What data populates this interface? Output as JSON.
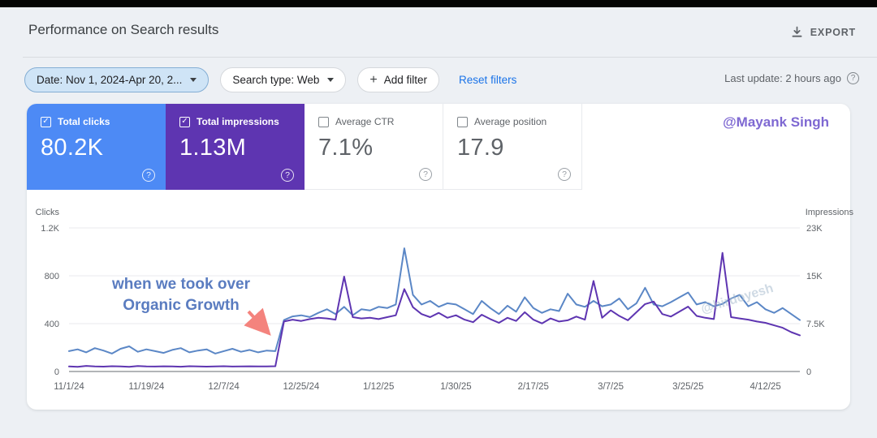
{
  "app": {
    "title": "Performance on Search results",
    "export_label": "EXPORT"
  },
  "filters": {
    "date_label": "Date: Nov 1, 2024-Apr 20, 2...",
    "search_type_label": "Search type: Web",
    "add_filter_label": "Add filter",
    "reset_label": "Reset filters",
    "last_update_label": "Last update: 2 hours ago"
  },
  "icons": {
    "plus": "+",
    "check": "✓",
    "help": "?"
  },
  "metrics": [
    {
      "label": "Total clicks",
      "value": "80.2K",
      "checked": true,
      "bg": "#4d8af5"
    },
    {
      "label": "Total impressions",
      "value": "1.13M",
      "checked": true,
      "bg": "#5e35b1"
    },
    {
      "label": "Average CTR",
      "value": "7.1%",
      "checked": false,
      "bg": ""
    },
    {
      "label": "Average position",
      "value": "17.9",
      "checked": false,
      "bg": ""
    }
  ],
  "watermarks": {
    "handle": "@Mayank Singh",
    "chart_handle": "@hirdoyesh"
  },
  "chart_data": {
    "type": "line",
    "left_axis": {
      "label": "Clicks",
      "ticks": [
        "1.2K",
        "800",
        "400",
        "0"
      ],
      "max": 1200
    },
    "right_axis": {
      "label": "Impressions",
      "ticks": [
        "23K",
        "15K",
        "7.5K",
        "0"
      ],
      "max": 23000
    },
    "x_ticks": [
      {
        "label": "11/1/24",
        "day": 0
      },
      {
        "label": "11/19/24",
        "day": 18
      },
      {
        "label": "12/7/24",
        "day": 36
      },
      {
        "label": "12/25/24",
        "day": 54
      },
      {
        "label": "1/12/25",
        "day": 72
      },
      {
        "label": "1/30/25",
        "day": 90
      },
      {
        "label": "2/17/25",
        "day": 108
      },
      {
        "label": "3/7/25",
        "day": 126
      },
      {
        "label": "3/25/25",
        "day": 144
      },
      {
        "label": "4/12/25",
        "day": 162
      }
    ],
    "domain_days": 170,
    "grid": true,
    "legend_position": "none",
    "annotation": {
      "line1": "when we took over",
      "line2": "Organic Growth"
    },
    "series": [
      {
        "name": "Total clicks",
        "axis": "left",
        "color": "#5b87c6",
        "step_days": 2,
        "values": [
          170,
          185,
          160,
          195,
          175,
          150,
          190,
          210,
          165,
          185,
          170,
          155,
          180,
          195,
          160,
          175,
          185,
          150,
          170,
          190,
          165,
          180,
          160,
          175,
          170,
          430,
          460,
          470,
          455,
          490,
          520,
          480,
          540,
          470,
          520,
          510,
          540,
          530,
          560,
          1030,
          640,
          560,
          590,
          540,
          570,
          560,
          520,
          480,
          590,
          530,
          480,
          550,
          500,
          620,
          530,
          490,
          520,
          505,
          650,
          560,
          540,
          590,
          545,
          560,
          610,
          520,
          570,
          700,
          560,
          545,
          580,
          620,
          660,
          560,
          580,
          545,
          565,
          610,
          640,
          545,
          580,
          520,
          490,
          530,
          480,
          430
        ]
      },
      {
        "name": "Total impressions",
        "axis": "right",
        "color": "#5e35b1",
        "step_days": 2,
        "values": [
          800,
          750,
          900,
          820,
          780,
          850,
          800,
          760,
          880,
          820,
          790,
          830,
          810,
          770,
          850,
          800,
          780,
          820,
          840,
          790,
          810,
          830,
          800,
          820,
          850,
          8000,
          8300,
          8100,
          8400,
          8600,
          8500,
          8300,
          15200,
          8700,
          8500,
          8600,
          8400,
          8700,
          9000,
          13200,
          10300,
          9200,
          8700,
          9400,
          8600,
          9000,
          8300,
          7900,
          9100,
          8400,
          7800,
          8600,
          8100,
          9500,
          8300,
          7700,
          8500,
          8000,
          8200,
          8800,
          8300,
          14500,
          8600,
          9800,
          8900,
          8200,
          9500,
          10800,
          11200,
          9200,
          8800,
          9600,
          10400,
          8900,
          8600,
          8400,
          19000,
          8700,
          8500,
          8300,
          8000,
          7800,
          7400,
          7000,
          6300,
          5800
        ]
      }
    ]
  }
}
